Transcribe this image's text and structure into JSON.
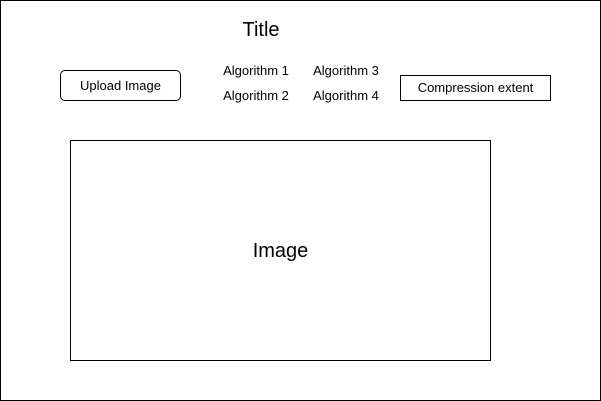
{
  "header": {
    "title": "Title"
  },
  "toolbar": {
    "upload_label": "Upload Image",
    "algorithms": [
      "Algorithm 1",
      "Algorithm 2",
      "Algorithm 3",
      "Algorithm 4"
    ],
    "compression_label": "Compression extent"
  },
  "main": {
    "image_label": "Image"
  }
}
